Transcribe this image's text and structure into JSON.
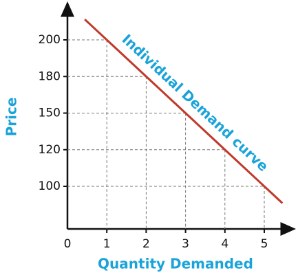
{
  "chart_data": {
    "type": "line",
    "x_label": "Quantity Demanded",
    "y_label": "Price",
    "annotation": "Individual Demand curve",
    "x": [
      1,
      2,
      3,
      4,
      5
    ],
    "values": [
      200,
      180,
      150,
      120,
      100
    ],
    "color": "#c0392b",
    "xlim": [
      0,
      5.6
    ],
    "xticks": [
      0,
      1,
      2,
      3,
      4,
      5
    ],
    "yticks": [
      100,
      120,
      150,
      180,
      200
    ],
    "y_scale": "ordinal",
    "drop_lines": true
  }
}
